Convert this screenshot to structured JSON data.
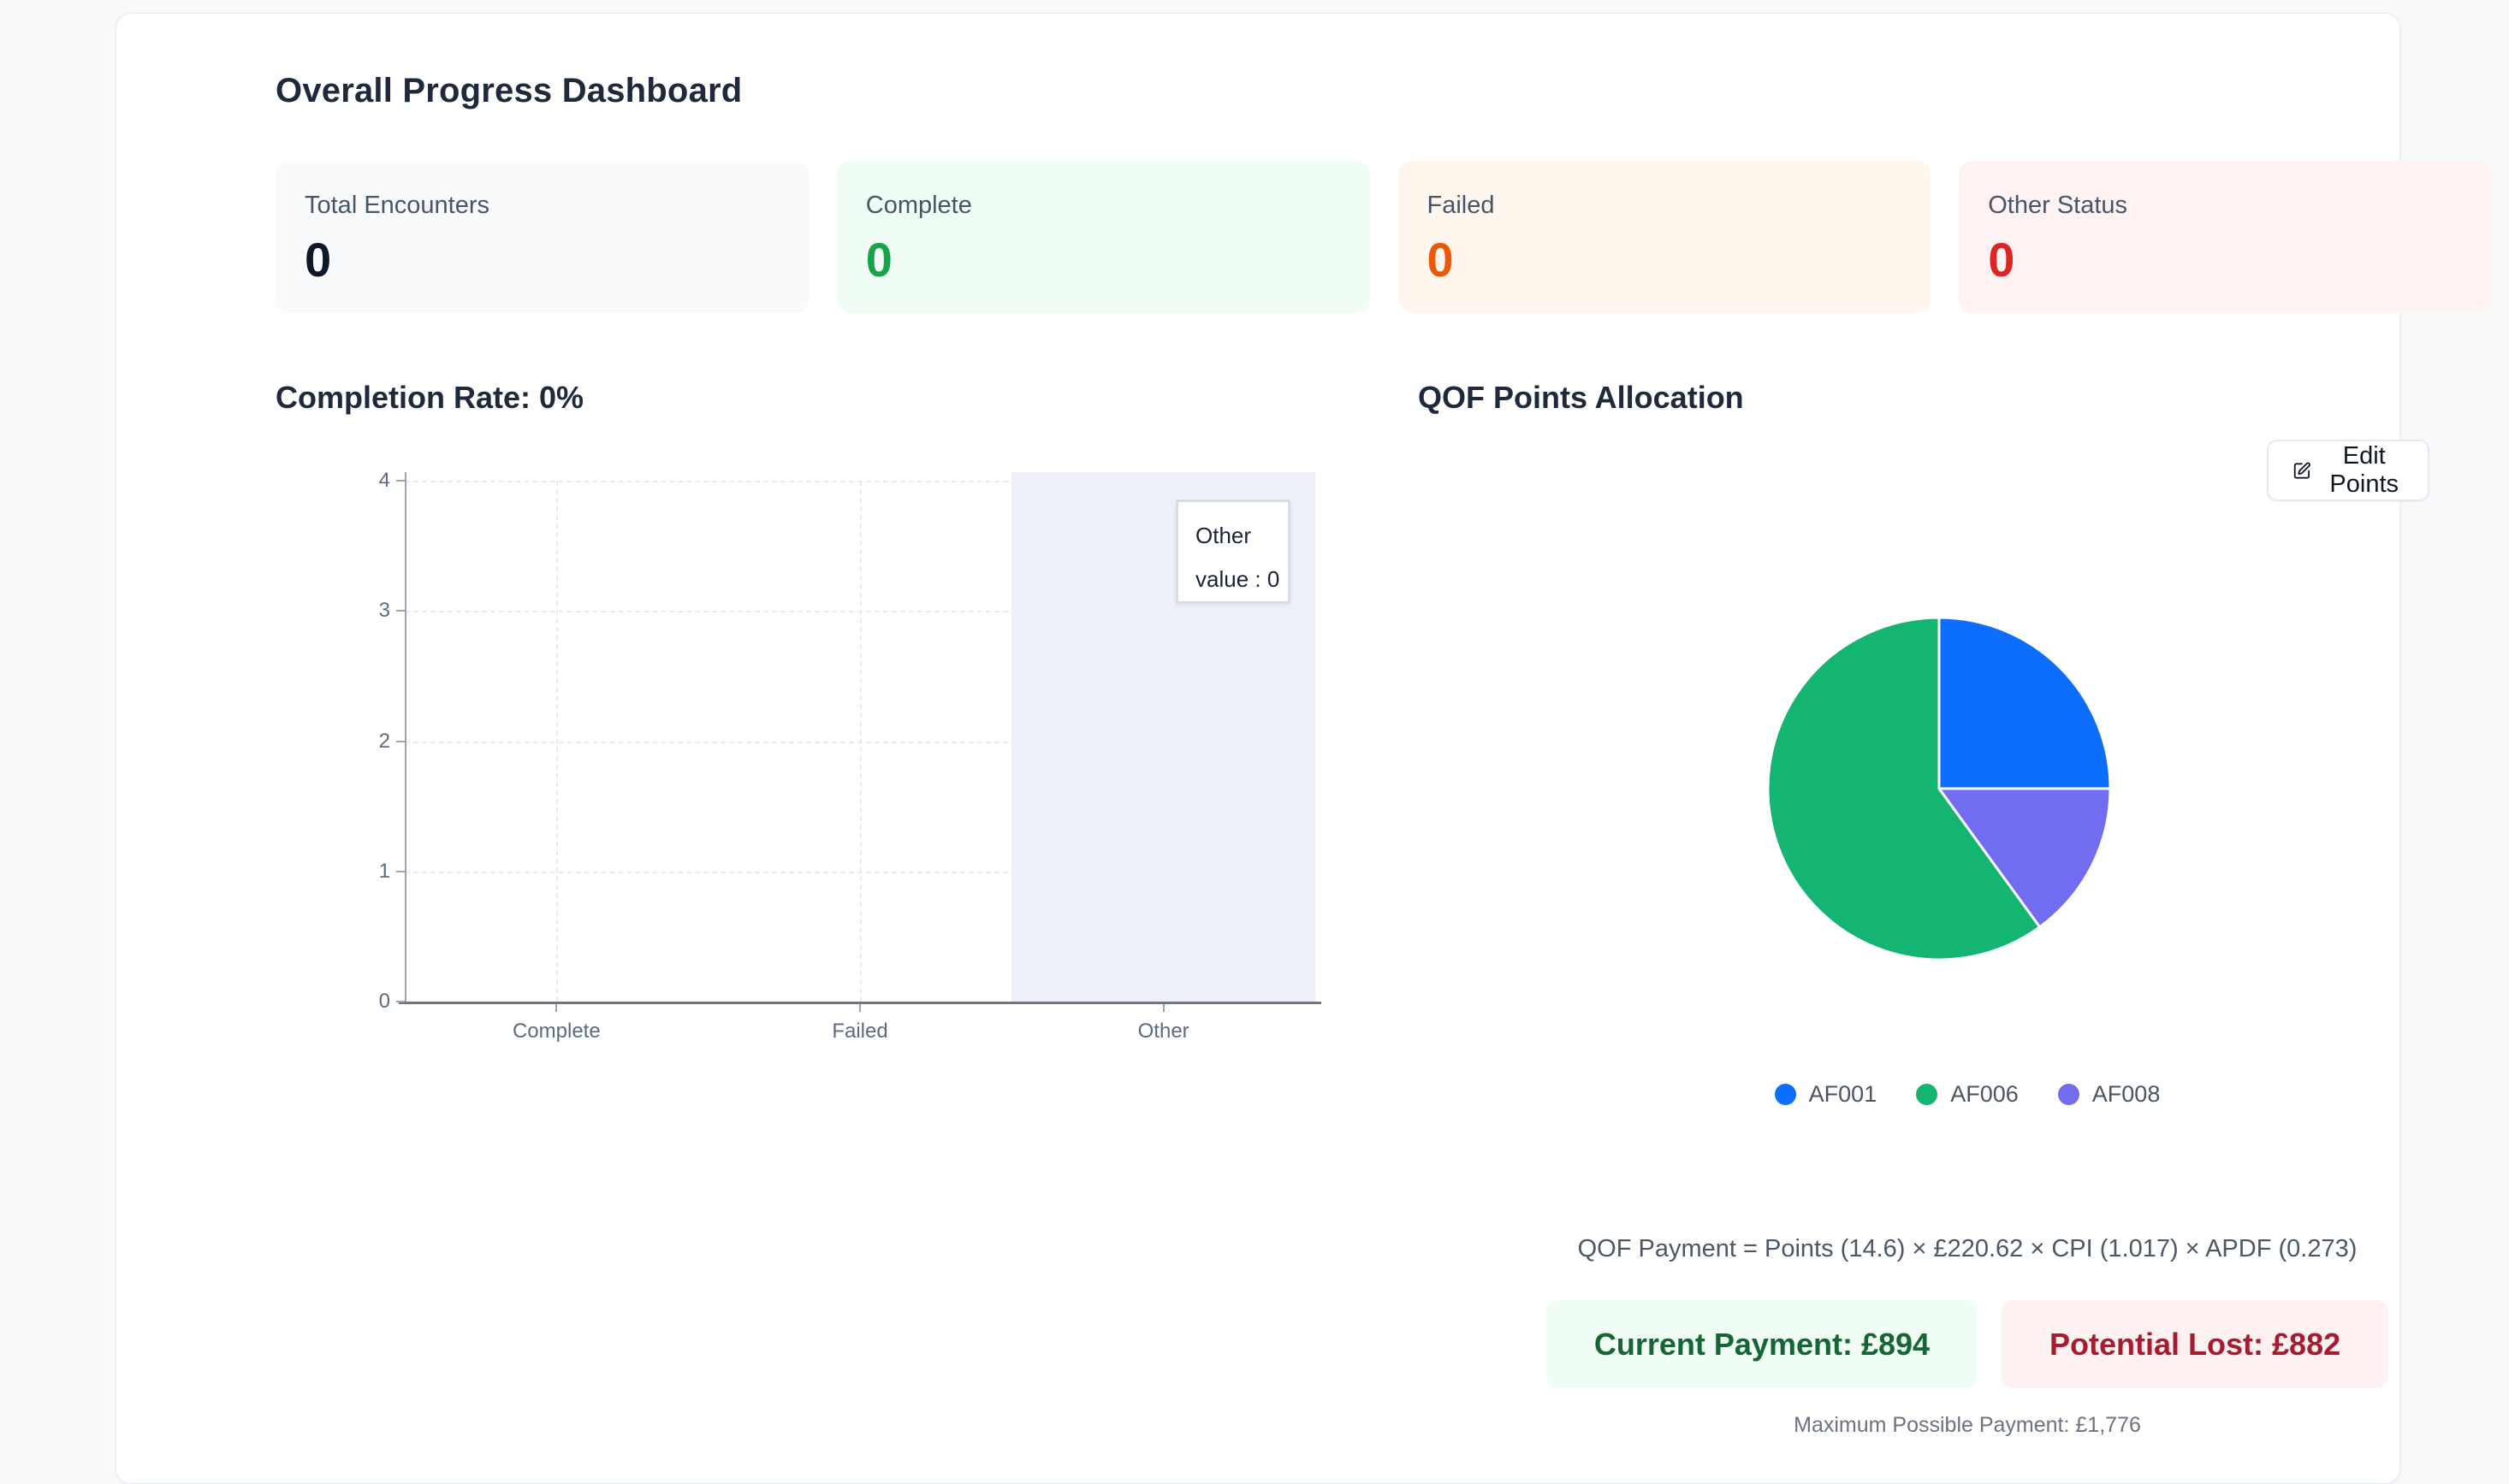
{
  "header": {
    "title": "Overall Progress Dashboard"
  },
  "stats": {
    "cards": [
      {
        "label": "Total Encounters",
        "value": "0",
        "bg": "#f8fafc",
        "value_color": "#0f172a"
      },
      {
        "label": "Complete",
        "value": "0",
        "bg": "#f0fdf4",
        "value_color": "#16a34a"
      },
      {
        "label": "Failed",
        "value": "0",
        "bg": "#fff7ed",
        "value_color": "#ea580c"
      },
      {
        "label": "Other Status",
        "value": "0",
        "bg": "#fef2f2",
        "value_color": "#dc2626"
      }
    ]
  },
  "chart_data": [
    {
      "type": "bar",
      "title": "Completion Rate: 0%",
      "categories": [
        "Complete",
        "Failed",
        "Other"
      ],
      "values": [
        0,
        0,
        0
      ],
      "ylim": [
        0,
        4
      ],
      "yticks": [
        0,
        1,
        2,
        3,
        4
      ],
      "grid": true,
      "highlighted_category": "Other",
      "tooltip": {
        "title": "Other",
        "line": "value : 0"
      },
      "axis_color": "#9aa3af",
      "grid_color": "#e8ebef"
    },
    {
      "type": "pie",
      "title": "QOF Points Allocation",
      "slices": [
        {
          "label": "AF001",
          "share_percent": 25,
          "color": "#0d6efd"
        },
        {
          "label": "AF008",
          "share_percent": 15,
          "color": "#716cf0"
        },
        {
          "label": "AF006",
          "share_percent": 60,
          "color": "#14b572"
        }
      ],
      "legend_order": [
        "AF001",
        "AF006",
        "AF008"
      ],
      "legend_position": "bottom",
      "points_total": 14.6
    }
  ],
  "completion": {
    "heading": "Completion Rate: 0%"
  },
  "qof": {
    "heading": "QOF Points Allocation",
    "edit_button": {
      "label": "Edit Points",
      "icon": "square-pen"
    },
    "formula": "QOF Payment = Points (14.6) × £220.62 × CPI (1.017) × APDF (0.273)",
    "current_payment": {
      "text": "Current Payment: £894",
      "bg": "#f0fdf4",
      "color": "#166534"
    },
    "potential_lost": {
      "text": "Potential Lost: £882",
      "bg": "#fdf1f2",
      "color": "#a51c30"
    },
    "max_payment": "Maximum Possible Payment: £1,776"
  }
}
